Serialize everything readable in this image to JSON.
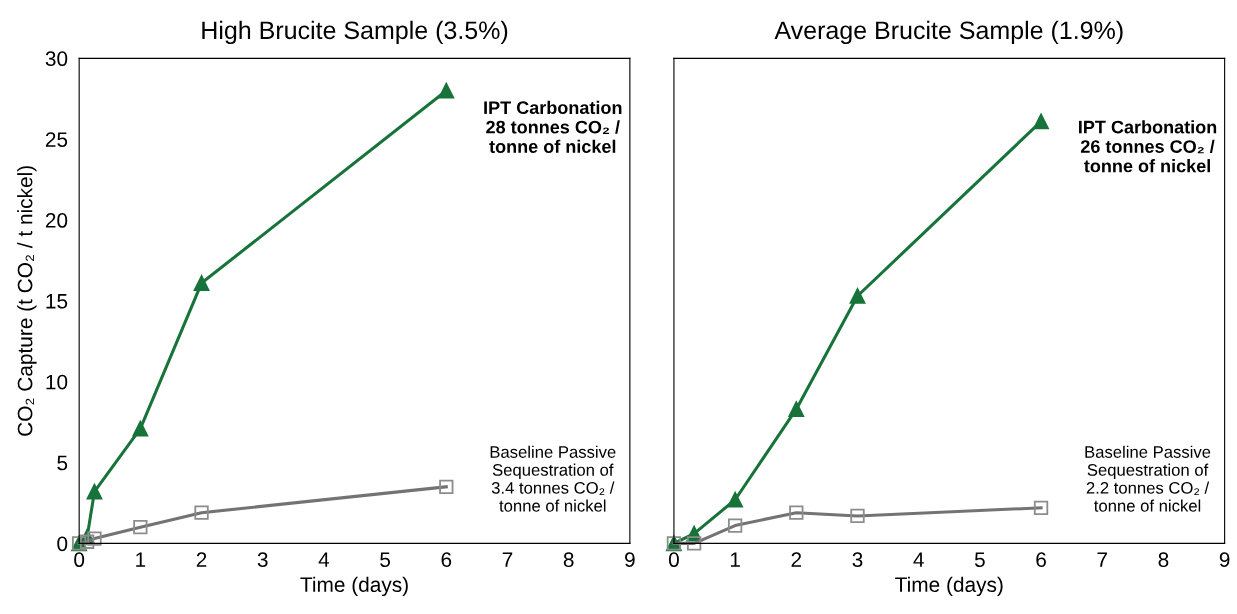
{
  "chart_data": [
    {
      "type": "line",
      "title": "High Brucite Sample (3.5%)",
      "xlabel": "Time (days)",
      "ylabel": "CO₂ Capture (t CO₂ / t nickel)",
      "xlim": [
        0,
        9
      ],
      "xticks": [
        0,
        1,
        2,
        3,
        4,
        5,
        6,
        7,
        8,
        9
      ],
      "ylim": [
        0,
        30
      ],
      "yticks": [
        0,
        5,
        10,
        15,
        20,
        25,
        30
      ],
      "series": [
        {
          "color": "#17733a",
          "marker": "triangle",
          "x": [
            0,
            0.13,
            0.25,
            1,
            2,
            6
          ],
          "values": [
            0,
            0.4,
            3.2,
            7.1,
            16.1,
            28
          ]
        },
        {
          "color": "#737373",
          "marker": "square",
          "x": [
            0,
            0.13,
            0.25,
            1,
            2,
            6
          ],
          "values": [
            0,
            0.1,
            0.3,
            1.0,
            1.9,
            3.5
          ]
        }
      ],
      "annotations": [
        "IPT Carbonation\n28 tonnes CO₂ /\ntonne of nickel",
        "Baseline Passive\nSequestration of\n3.4 tonnes CO₂ /\ntonne of nickel"
      ]
    },
    {
      "type": "line",
      "title": "Average Brucite Sample (1.9%)",
      "xlabel": "Time (days)",
      "xlim": [
        0,
        9
      ],
      "xticks": [
        0,
        1,
        2,
        3,
        4,
        5,
        6,
        7,
        8,
        9
      ],
      "ylim": [
        0,
        30
      ],
      "tick_labels": "x",
      "series": [
        {
          "color": "#17733a",
          "marker": "triangle",
          "x": [
            0,
            0.33,
            1,
            2,
            3,
            6
          ],
          "values": [
            0,
            0.6,
            2.7,
            8.3,
            15.3,
            26.1
          ]
        },
        {
          "color": "#737373",
          "marker": "square",
          "x": [
            0,
            0.33,
            1,
            2,
            3,
            6
          ],
          "values": [
            0,
            0,
            1.1,
            1.9,
            1.7,
            2.2
          ]
        }
      ],
      "annotations": [
        "IPT Carbonation\n26 tonnes CO₂ /\ntonne of nickel",
        "Baseline Passive\nSequestration of\n2.2 tonnes CO₂ /\ntonne of nickel"
      ]
    }
  ]
}
